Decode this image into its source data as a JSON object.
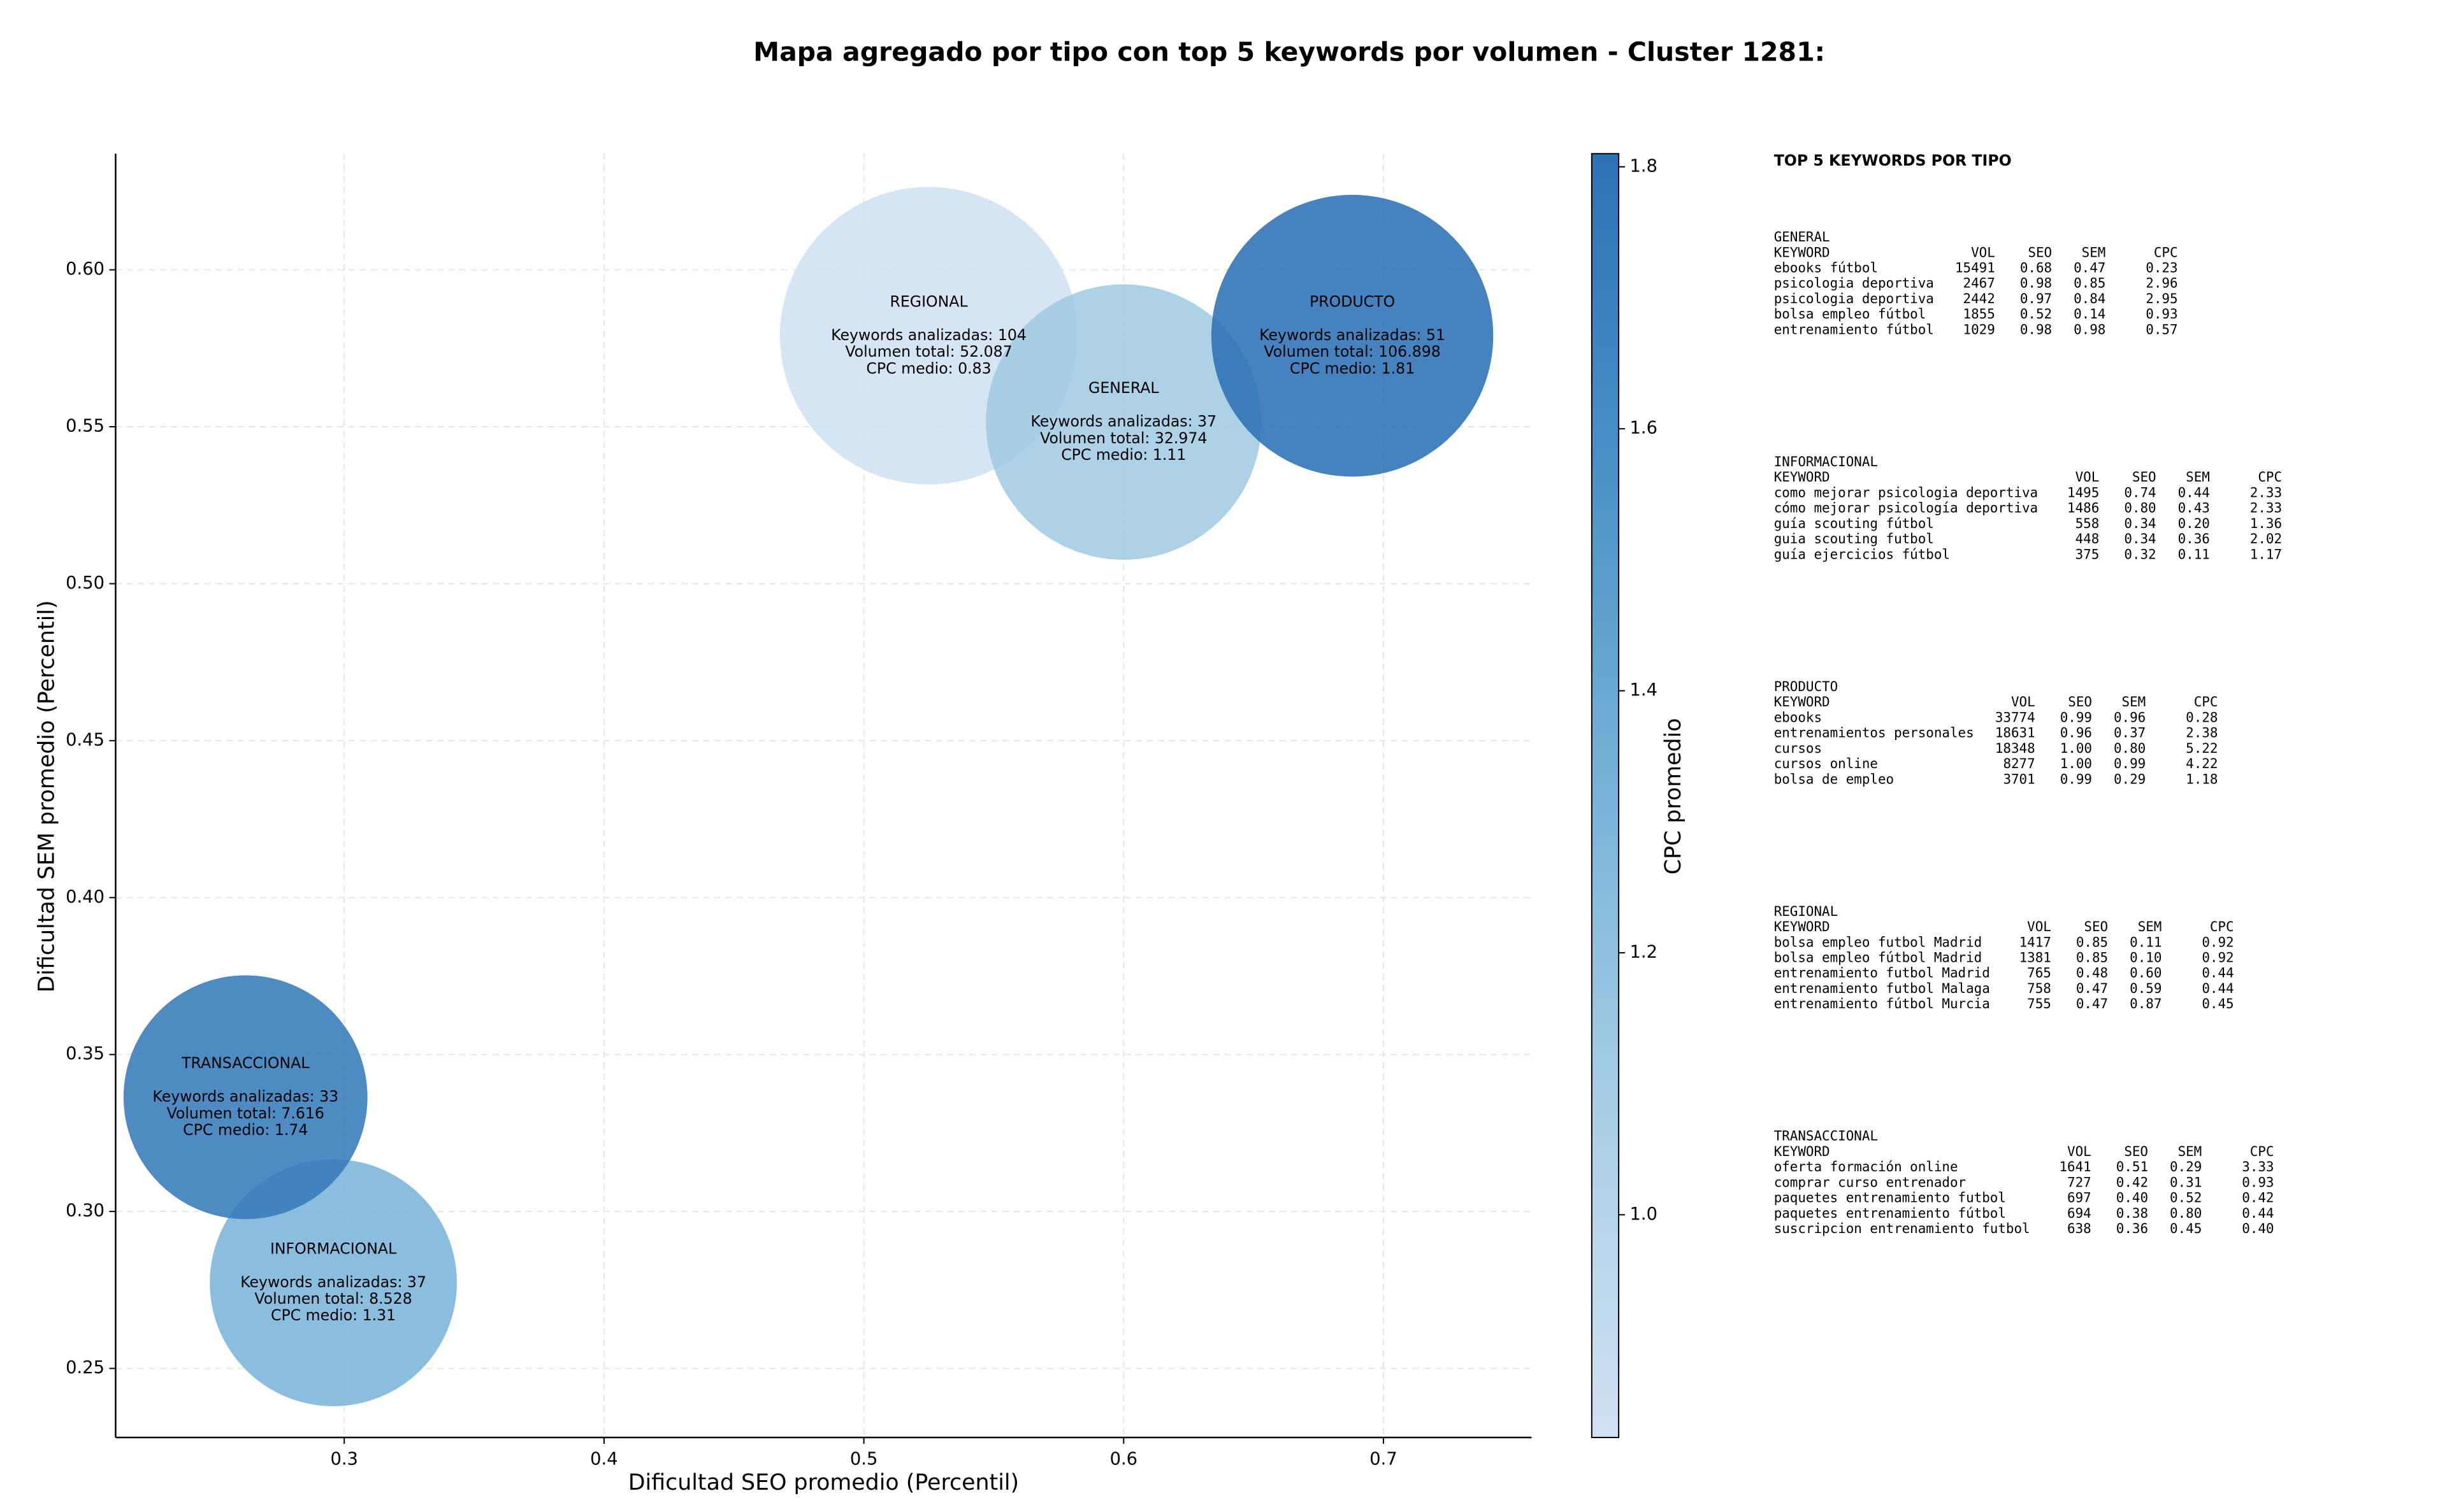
{
  "chart_data": {
    "type": "scatter",
    "title": "Mapa agregado por tipo con top 5 keywords por volumen - Cluster 1281:",
    "xlabel": "Dificultad SEO promedio (Percentil)",
    "ylabel": "Dificultad SEM promedio (Percentil)",
    "xlim": [
      0.212,
      0.757
    ],
    "ylim": [
      0.228,
      0.637
    ],
    "xticks": [
      0.3,
      0.4,
      0.5,
      0.6,
      0.7
    ],
    "yticks": [
      0.25,
      {
        "value": 0.3,
        "label": "0.30"
      },
      0.35,
      {
        "value": 0.4,
        "label": "0.40"
      },
      0.45,
      {
        "value": 0.5,
        "label": "0.50"
      },
      0.55,
      {
        "value": 0.6,
        "label": "0.60"
      }
    ],
    "grid": true,
    "colorbar_label": "CPC promedio",
    "clim": [
      0.83,
      1.81
    ],
    "cticks": [
      {
        "value": 1.0,
        "label": "1.0"
      },
      1.2,
      1.4,
      1.6,
      1.8
    ],
    "colormap": [
      "#d0e1f2",
      "#a9cfe5",
      "#78b3d8",
      "#4a92c8",
      "#2c72b5"
    ],
    "label_prefixes": {
      "keywords": "Keywords analizadas: ",
      "volume": "Volumen total: ",
      "cpc": "CPC medio: "
    },
    "series": [
      {
        "name": "REGIONAL",
        "x": 0.525,
        "y": 0.579,
        "size": 94,
        "keywords": 104,
        "volume": 52087,
        "volume_label": "52.087",
        "cpc": 0.83
      },
      {
        "name": "GENERAL",
        "x": 0.6,
        "y": 0.5515,
        "size": 87,
        "keywords": 37,
        "volume": 32974,
        "volume_label": "32.974",
        "cpc": 1.11
      },
      {
        "name": "PRODUCTO",
        "x": 0.688,
        "y": 0.579,
        "size": 89,
        "keywords": 51,
        "volume": 106898,
        "volume_label": "106.898",
        "cpc": 1.81
      },
      {
        "name": "INFORMACIONAL",
        "x": 0.2958,
        "y": 0.2773,
        "size": 78,
        "keywords": 37,
        "volume": 8528,
        "volume_label": "8.528",
        "cpc": 1.31
      },
      {
        "name": "TRANSACCIONAL",
        "x": 0.262,
        "y": 0.3364,
        "size": 77,
        "keywords": 33,
        "volume": 7616,
        "volume_label": "7.616",
        "cpc": 1.74
      }
    ]
  },
  "panel": {
    "title": "TOP 5 KEYWORDS POR TIPO",
    "sections": [
      {
        "name": "GENERAL",
        "header": [
          "KEYWORD",
          "VOL",
          "SEO",
          "SEM",
          "CPC"
        ],
        "rows": [
          [
            "ebooks fútbol",
            "15491",
            "0.68",
            "0.47",
            "0.23"
          ],
          [
            "psicologia deportiva",
            "2467",
            "0.98",
            "0.85",
            "2.96"
          ],
          [
            "psicologia deportiva",
            "2442",
            "0.97",
            "0.84",
            "2.95"
          ],
          [
            "bolsa empleo fútbol",
            "1855",
            "0.52",
            "0.14",
            "0.93"
          ],
          [
            "entrenamiento fútbol",
            "1029",
            "0.98",
            "0.98",
            "0.57"
          ]
        ]
      },
      {
        "name": "INFORMACIONAL",
        "header": [
          "KEYWORD",
          "VOL",
          "SEO",
          "SEM",
          "CPC"
        ],
        "rows": [
          [
            "como mejorar psicologia deportiva",
            "1495",
            "0.74",
            "0.44",
            "2.33"
          ],
          [
            "cómo mejorar psicología deportiva",
            "1486",
            "0.80",
            "0.43",
            "2.33"
          ],
          [
            "guía scouting fútbol",
            "558",
            "0.34",
            "0.20",
            "1.36"
          ],
          [
            "guia scouting futbol",
            "448",
            "0.34",
            "0.36",
            "2.02"
          ],
          [
            "guía ejercicios fútbol",
            "375",
            "0.32",
            "0.11",
            "1.17"
          ]
        ]
      },
      {
        "name": "PRODUCTO",
        "header": [
          "KEYWORD",
          "VOL",
          "SEO",
          "SEM",
          "CPC"
        ],
        "rows": [
          [
            "ebooks",
            "33774",
            "0.99",
            "0.96",
            "0.28"
          ],
          [
            "entrenamientos personales",
            "18631",
            "0.96",
            "0.37",
            "2.38"
          ],
          [
            "cursos",
            "18348",
            "1.00",
            "0.80",
            "5.22"
          ],
          [
            "cursos online",
            "8277",
            "1.00",
            "0.99",
            "4.22"
          ],
          [
            "bolsa de empleo",
            "3701",
            "0.99",
            "0.29",
            "1.18"
          ]
        ]
      },
      {
        "name": "REGIONAL",
        "header": [
          "KEYWORD",
          "VOL",
          "SEO",
          "SEM",
          "CPC"
        ],
        "rows": [
          [
            "bolsa empleo futbol Madrid",
            "1417",
            "0.85",
            "0.11",
            "0.92"
          ],
          [
            "bolsa empleo fútbol Madrid",
            "1381",
            "0.85",
            "0.10",
            "0.92"
          ],
          [
            "entrenamiento futbol Madrid",
            "765",
            "0.48",
            "0.60",
            "0.44"
          ],
          [
            "entrenamiento futbol Malaga",
            "758",
            "0.47",
            "0.59",
            "0.44"
          ],
          [
            "entrenamiento fútbol Murcia",
            "755",
            "0.47",
            "0.87",
            "0.45"
          ]
        ]
      },
      {
        "name": "TRANSACCIONAL",
        "header": [
          "KEYWORD",
          "VOL",
          "SEO",
          "SEM",
          "CPC"
        ],
        "rows": [
          [
            "oferta formación online",
            "1641",
            "0.51",
            "0.29",
            "3.33"
          ],
          [
            "comprar curso entrenador",
            "727",
            "0.42",
            "0.31",
            "0.93"
          ],
          [
            "paquetes entrenamiento futbol",
            "697",
            "0.40",
            "0.52",
            "0.42"
          ],
          [
            "paquetes entrenamiento fútbol",
            "694",
            "0.38",
            "0.80",
            "0.44"
          ],
          [
            "suscripcion entrenamiento futbol",
            "638",
            "0.36",
            "0.45",
            "0.40"
          ]
        ]
      }
    ]
  }
}
